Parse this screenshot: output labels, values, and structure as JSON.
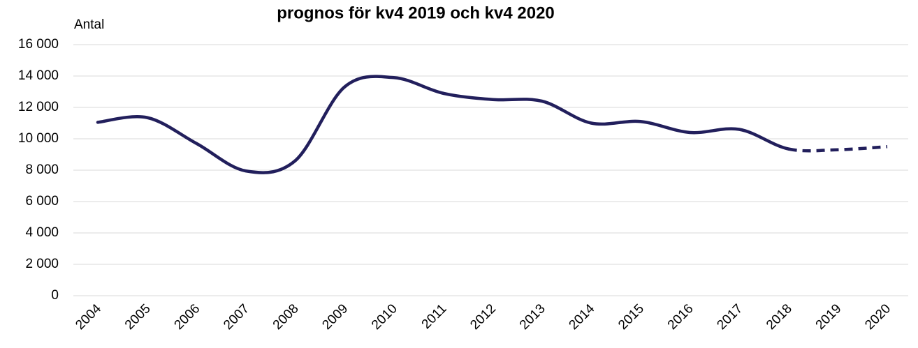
{
  "chart_data": {
    "type": "line",
    "title": "prognos för kv4 2019 och kv4 2020",
    "y_label": "Antal",
    "categories": [
      "2004",
      "2005",
      "2006",
      "2007",
      "2008",
      "2009",
      "2010",
      "2011",
      "2012",
      "2013",
      "2014",
      "2015",
      "2016",
      "2017",
      "2018",
      "2019",
      "2020"
    ],
    "series": [
      {
        "name": "Antal",
        "color": "#221f5c",
        "values": [
          11050,
          11350,
          9700,
          7950,
          8600,
          13300,
          13900,
          12900,
          12500,
          12400,
          11000,
          11100,
          10400,
          10600,
          9350,
          9300,
          9500
        ],
        "dashed": [
          false,
          false,
          false,
          false,
          false,
          false,
          false,
          false,
          false,
          false,
          false,
          false,
          false,
          false,
          false,
          true,
          true
        ]
      }
    ],
    "ylim": [
      0,
      16000
    ],
    "yticks": [
      0,
      {
        "value": 2000,
        "label": "2 000"
      },
      {
        "value": 4000,
        "label": "4 000"
      },
      {
        "value": 6000,
        "label": "6 000"
      },
      {
        "value": 8000,
        "label": "8 000"
      },
      {
        "value": 10000,
        "label": "10 000"
      },
      {
        "value": 12000,
        "label": "12 000"
      },
      {
        "value": 14000,
        "label": "14 000"
      },
      {
        "value": 16000,
        "label": "16 000"
      }
    ],
    "grid": true,
    "smooth": true
  }
}
